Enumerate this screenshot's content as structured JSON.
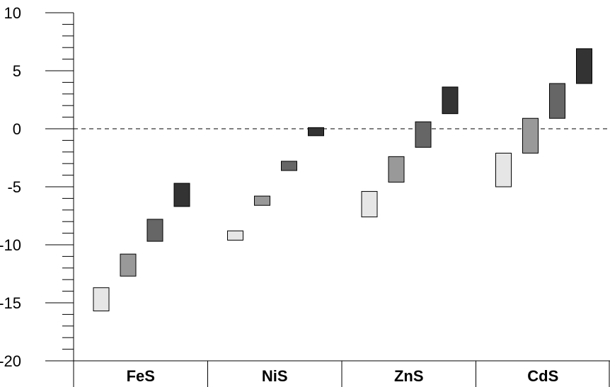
{
  "chart_data": {
    "type": "floating-bar",
    "title": "",
    "xlabel": "",
    "ylabel": "",
    "ylim": [
      -20,
      10
    ],
    "y_major_ticks": [
      10,
      5,
      0,
      -5,
      -10,
      -15,
      -20
    ],
    "y_minor_step": 1,
    "reference_line": 0,
    "categories": [
      "FeS",
      "NiS",
      "ZnS",
      "CdS"
    ],
    "series_colors": [
      "#e6e6e6",
      "#999999",
      "#666666",
      "#333333"
    ],
    "groups": [
      {
        "category": "FeS",
        "bars": [
          {
            "low": -15.7,
            "high": -13.7
          },
          {
            "low": -12.7,
            "high": -10.8
          },
          {
            "low": -9.7,
            "high": -7.8
          },
          {
            "low": -6.7,
            "high": -4.7
          }
        ]
      },
      {
        "category": "NiS",
        "bars": [
          {
            "low": -9.6,
            "high": -8.8
          },
          {
            "low": -6.6,
            "high": -5.8
          },
          {
            "low": -3.6,
            "high": -2.8
          },
          {
            "low": -0.6,
            "high": 0.1
          }
        ]
      },
      {
        "category": "ZnS",
        "bars": [
          {
            "low": -7.6,
            "high": -5.4
          },
          {
            "low": -4.6,
            "high": -2.4
          },
          {
            "low": -1.6,
            "high": 0.6
          },
          {
            "low": 1.3,
            "high": 3.6
          }
        ]
      },
      {
        "category": "CdS",
        "bars": [
          {
            "low": -5.0,
            "high": -2.1
          },
          {
            "low": -2.1,
            "high": 0.9
          },
          {
            "low": 0.9,
            "high": 3.9
          },
          {
            "low": 3.9,
            "high": 6.9
          }
        ]
      }
    ],
    "grid": false,
    "legend": "none"
  }
}
